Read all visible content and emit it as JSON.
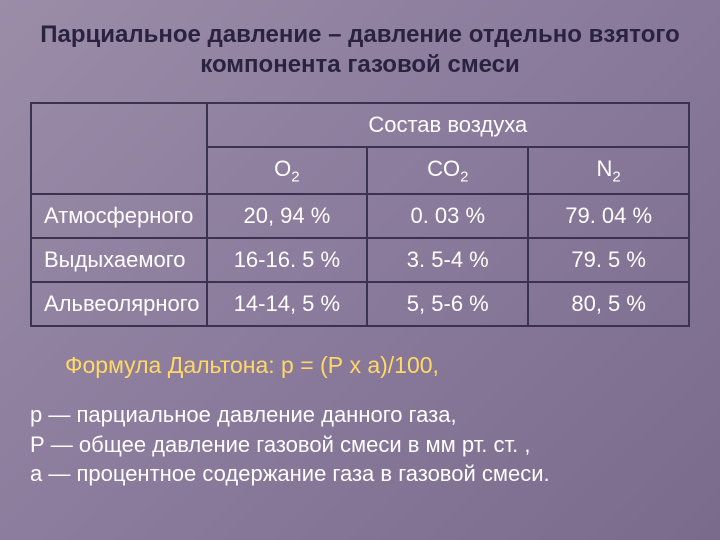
{
  "title": "Парциальное давление – давление отдельно взятого компонента газовой смеси",
  "table": {
    "header_top": "Состав воздуха",
    "cols": [
      "O",
      "CO",
      "N"
    ],
    "col_sub": "2",
    "rows": [
      {
        "label": "Атмосферного",
        "o2": "20, 94 %",
        "co2": "0. 03 %",
        "n2": "79. 04 %"
      },
      {
        "label": "Выдыхаемого",
        "o2": "16-16. 5 %",
        "co2": "3. 5-4 %",
        "n2": "79. 5 %"
      },
      {
        "label": "Альвеолярного",
        "o2": "14-14, 5 %",
        "co2": "5, 5-6 %",
        "n2": "80, 5 %"
      }
    ]
  },
  "formula": "Формула Дальтона: р = (Р х а)/100,",
  "legend": {
    "l1": "р — парциальное давление данного газа,",
    "l2": "Р — общее давление газовой смеси в мм рт. ст. ,",
    "l3": " а — процентное содержание газа в газовой смеси."
  },
  "style": {
    "title_color": "#2a2340",
    "text_color": "#ffffff",
    "formula_color": "#ffd966",
    "border_color": "#3a3250",
    "bg_gradient": [
      "#9b8da8",
      "#8a7a9c",
      "#7a6a8c"
    ],
    "title_fontsize": 24,
    "cell_fontsize": 22,
    "legend_fontsize": 22
  }
}
